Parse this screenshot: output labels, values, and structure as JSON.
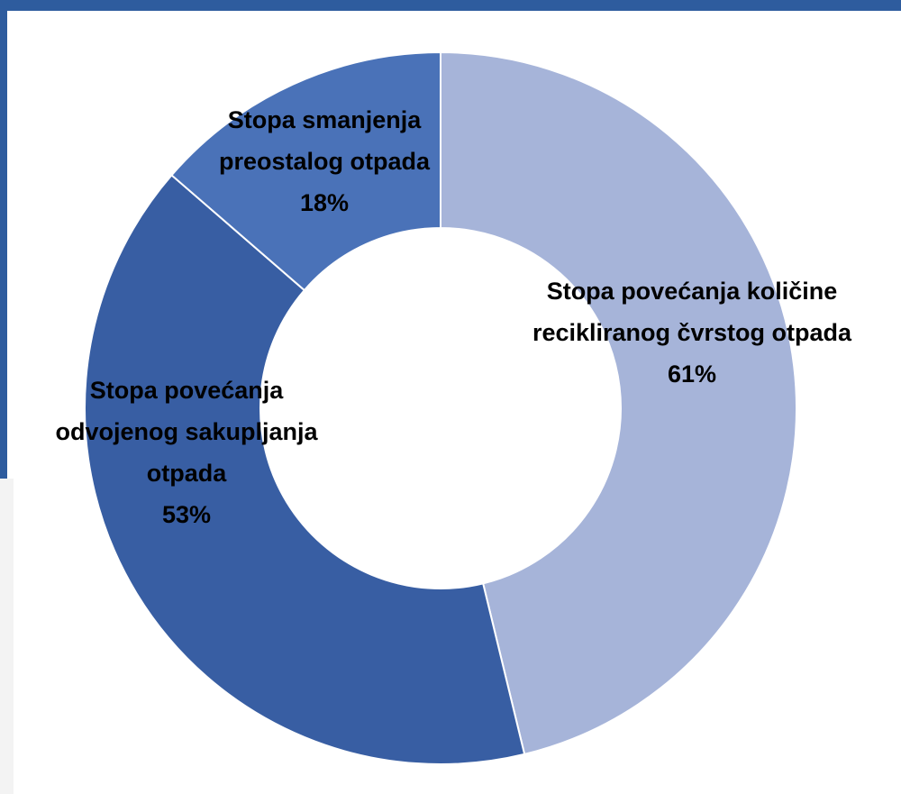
{
  "chart_data": {
    "type": "pie",
    "variant": "donut",
    "title": "",
    "slices": [
      {
        "label_lines": [
          "Stopa povećanja količine",
          "recikliranog čvrstog otpada"
        ],
        "value_label": "61%",
        "value": 61,
        "color": "#a6b4d9"
      },
      {
        "label_lines": [
          "Stopa povećanja",
          "odvojenog sakupljanja",
          "otpada"
        ],
        "value_label": "53%",
        "value": 53,
        "color": "#385ea3"
      },
      {
        "label_lines": [
          "Stopa smanjenja",
          "preostalog otpada"
        ],
        "value_label": "18%",
        "value": 18,
        "color": "#4a72b8"
      }
    ],
    "start_angle_deg": 0,
    "direction": "clockwise",
    "legend": "none"
  },
  "colors": {
    "frame": "#2e5c9e",
    "slice_border": "#ffffff",
    "label_text": "#000000"
  }
}
